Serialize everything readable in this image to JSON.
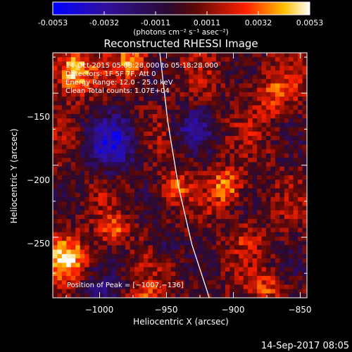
{
  "colorbar": {
    "min": -0.0053,
    "max": 0.0053,
    "tick_labels": [
      "-0.0053",
      "-0.0032",
      "-0.0011",
      "0.0011",
      "0.0032",
      "0.0053"
    ],
    "unit_label": "(photons cm⁻² s⁻¹ asec⁻²)"
  },
  "chart_data": {
    "type": "heatmap",
    "title": "Reconstructed RHESSI Image",
    "xlabel": "Heliocentric X (arcsec)",
    "ylabel": "Heliocentric Y (arcsec)",
    "xlim": [
      -1035,
      -845
    ],
    "ylim": [
      -292,
      -122
    ],
    "x_ticks": [
      -1000,
      -950,
      -900,
      -850
    ],
    "y_ticks": [
      -150,
      -200,
      -250
    ],
    "x_tick_labels": [
      "−1000",
      "−950",
      "−900",
      "−850"
    ],
    "y_tick_labels": [
      "−150",
      "−200",
      "−250"
    ],
    "grid": false,
    "annotations": [
      "14-Oct-2015 05:08:28.000 to 05:18:28.000",
      "Detectors: 1F 5F 7F, Att 0",
      "Energy Range: 12.0 - 25.0 keV",
      "Clean   Total counts: 1.07E+04"
    ],
    "peak_label": "Position of Peak = [−1007,−136]",
    "peak": [
      -1007,
      -136
    ],
    "limb_curve": {
      "x": [
        -955,
        -949,
        -941,
        -931,
        -918
      ],
      "y": [
        -122,
        -170,
        -215,
        -255,
        -292
      ]
    },
    "colormap": "blue-purple-red-yellow-white"
  },
  "footer": {
    "timestamp": "14-Sep-2017 08:05"
  }
}
